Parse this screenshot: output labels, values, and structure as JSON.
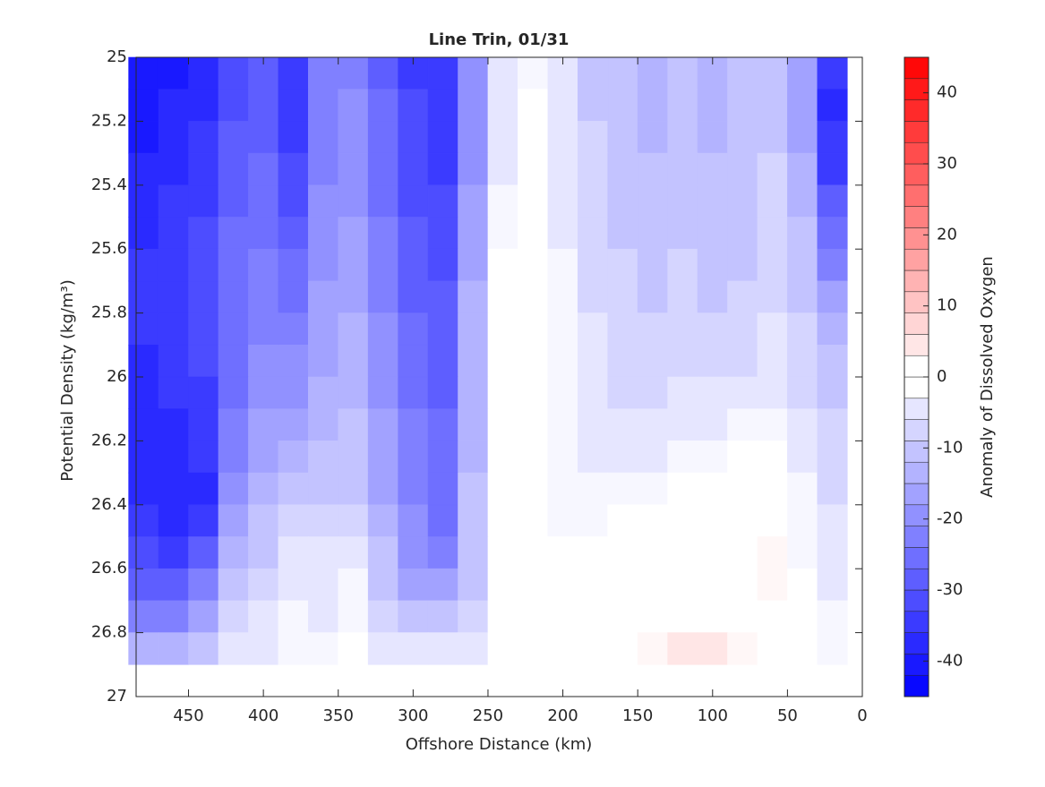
{
  "chart_data": {
    "type": "contour",
    "title": "Line Trin, 01/31",
    "xlabel": "Offshore Distance (km)",
    "ylabel": "Potential Density (kg/m³)",
    "colorbar_label": "Anomaly of Dissolved Oxygen",
    "xlim": [
      485,
      0
    ],
    "ylim": [
      25,
      27
    ],
    "y_reversed": true,
    "xticks": [
      450,
      400,
      350,
      300,
      250,
      200,
      150,
      100,
      50,
      0
    ],
    "yticks": [
      25,
      25.2,
      25.4,
      25.6,
      25.8,
      26,
      26.2,
      26.4,
      26.6,
      26.8,
      27
    ],
    "clim": [
      -45,
      45
    ],
    "level_step": 3,
    "cticks": [
      -40,
      -30,
      -20,
      -10,
      0,
      10,
      20,
      30,
      40
    ],
    "x": [
      480,
      460,
      440,
      420,
      400,
      380,
      360,
      340,
      320,
      300,
      280,
      260,
      240,
      220,
      200,
      180,
      160,
      140,
      120,
      100,
      80,
      60,
      40,
      20
    ],
    "y": [
      25.05,
      25.15,
      25.25,
      25.35,
      25.45,
      25.55,
      25.65,
      25.75,
      25.85,
      25.95,
      26.05,
      26.15,
      26.25,
      26.35,
      26.45,
      26.55,
      26.65,
      26.75,
      26.85
    ],
    "z": [
      [
        -42,
        -40,
        -38,
        -32,
        -30,
        -36,
        -24,
        -22,
        -28,
        -34,
        -36,
        -20,
        -5,
        -2,
        -6,
        -10,
        -12,
        -14,
        -12,
        -14,
        -12,
        -10,
        -18,
        -36
      ],
      [
        -41,
        -39,
        -37,
        -31,
        -29,
        -35,
        -24,
        -21,
        -27,
        -33,
        -35,
        -20,
        -5,
        -1,
        -6,
        -10,
        -12,
        -13,
        -12,
        -13,
        -12,
        -10,
        -17,
        -38
      ],
      [
        -40,
        -38,
        -36,
        -30,
        -28,
        -34,
        -23,
        -20,
        -26,
        -33,
        -35,
        -19,
        -4,
        -1,
        -5,
        -9,
        -11,
        -13,
        -11,
        -13,
        -12,
        -10,
        -16,
        -36
      ],
      [
        -39,
        -37,
        -35,
        -29,
        -27,
        -33,
        -22,
        -20,
        -26,
        -32,
        -34,
        -19,
        -4,
        0,
        -5,
        -9,
        -11,
        -12,
        -11,
        -12,
        -11,
        -9,
        -15,
        -34
      ],
      [
        -38,
        -36,
        -34,
        -28,
        -26,
        -31,
        -21,
        -19,
        -25,
        -31,
        -33,
        -18,
        -3,
        0,
        -4,
        -8,
        -10,
        -12,
        -10,
        -12,
        -11,
        -9,
        -14,
        -30
      ],
      [
        -37,
        -35,
        -33,
        -27,
        -25,
        -29,
        -20,
        -18,
        -24,
        -30,
        -32,
        -17,
        -2,
        0,
        -4,
        -8,
        -10,
        -11,
        -10,
        -11,
        -10,
        -8,
        -12,
        -26
      ],
      [
        -36,
        -34,
        -32,
        -27,
        -24,
        -27,
        -19,
        -17,
        -23,
        -29,
        -31,
        -16,
        -1,
        0,
        -3,
        -7,
        -9,
        -11,
        -9,
        -11,
        -10,
        -8,
        -11,
        -22
      ],
      [
        -36,
        -34,
        -32,
        -26,
        -23,
        -25,
        -18,
        -16,
        -22,
        -28,
        -30,
        -15,
        0,
        0,
        -3,
        -7,
        -9,
        -10,
        -9,
        -10,
        -9,
        -7,
        -10,
        -18
      ],
      [
        -36,
        -35,
        -33,
        -26,
        -22,
        -23,
        -17,
        -15,
        -21,
        -27,
        -30,
        -15,
        0,
        0,
        -2,
        -6,
        -8,
        -9,
        -8,
        -9,
        -8,
        -6,
        -9,
        -15
      ],
      [
        -37,
        -35,
        -33,
        -25,
        -21,
        -21,
        -16,
        -14,
        -20,
        -26,
        -29,
        -14,
        0,
        0,
        -2,
        -6,
        -8,
        -8,
        -7,
        -8,
        -7,
        -5,
        -8,
        -12
      ],
      [
        -37,
        -36,
        -34,
        -25,
        -20,
        -19,
        -14,
        -13,
        -19,
        -25,
        -28,
        -14,
        0,
        0,
        -2,
        -5,
        -7,
        -7,
        -6,
        -6,
        -5,
        -4,
        -7,
        -10
      ],
      [
        -38,
        -37,
        -35,
        -24,
        -18,
        -17,
        -13,
        -12,
        -18,
        -24,
        -27,
        -13,
        0,
        0,
        -2,
        -5,
        -6,
        -6,
        -4,
        -4,
        -3,
        -3,
        -6,
        -9
      ],
      [
        -38,
        -38,
        -36,
        -23,
        -16,
        -15,
        -12,
        -11,
        -17,
        -23,
        -27,
        -13,
        0,
        0,
        -2,
        -4,
        -5,
        -4,
        -2,
        -2,
        -1,
        -1,
        -4,
        -8
      ],
      [
        -37,
        -39,
        -37,
        -21,
        -14,
        -12,
        -11,
        -10,
        -16,
        -22,
        -26,
        -12,
        0,
        0,
        -2,
        -3,
        -3,
        -2,
        -1,
        0,
        0,
        0,
        -3,
        -7
      ],
      [
        -35,
        -38,
        -36,
        -18,
        -12,
        -9,
        -9,
        -8,
        -14,
        -21,
        -25,
        -12,
        0,
        0,
        -2,
        -2,
        -1,
        0,
        0,
        0,
        0,
        1,
        -2,
        -6
      ],
      [
        -32,
        -34,
        -30,
        -14,
        -10,
        -6,
        -6,
        -4,
        -12,
        -19,
        -23,
        -11,
        0,
        0,
        -1,
        -1,
        0,
        0,
        0,
        0,
        0,
        2,
        -2,
        -5
      ],
      [
        -28,
        -29,
        -24,
        -11,
        -8,
        -4,
        -5,
        -3,
        -10,
        -16,
        -18,
        -10,
        0,
        0,
        -1,
        -1,
        0,
        0,
        0,
        0,
        0,
        2,
        -1,
        -4
      ],
      [
        -24,
        -22,
        -18,
        -8,
        -6,
        -3,
        -4,
        -2,
        -7,
        -11,
        -12,
        -7,
        0,
        0,
        -1,
        0,
        0,
        0,
        1,
        1,
        0,
        1,
        0,
        -3
      ],
      [
        -15,
        -13,
        -10,
        -5,
        -4,
        -2,
        -2,
        -1,
        -4,
        -6,
        -6,
        -4,
        0,
        0,
        0,
        0,
        1,
        2,
        4,
        3,
        2,
        1,
        0,
        -2
      ]
    ]
  }
}
